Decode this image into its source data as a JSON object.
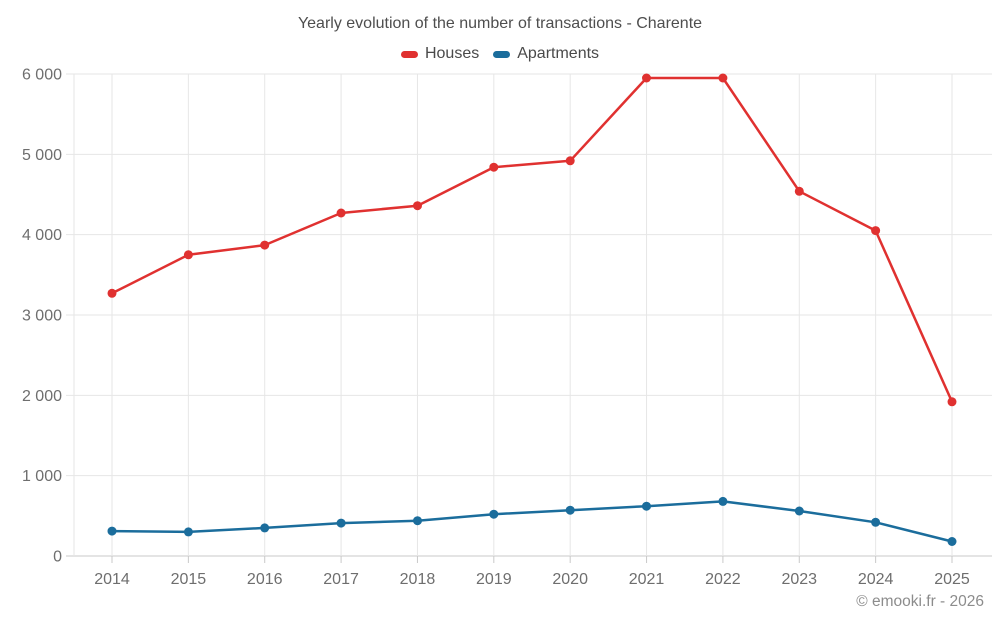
{
  "chart": {
    "title": "Yearly evolution of the number of transactions - Charente",
    "legend": [
      {
        "label": "Houses",
        "color": "#e03130"
      },
      {
        "label": "Apartments",
        "color": "#1b6d9c"
      }
    ],
    "footer": "© emooki.fr - 2026",
    "colors": {
      "grid_line": "#e6e6e6",
      "axis_line": "#c9c9c9",
      "axis_text": "#6e6e6e",
      "title_text": "#4e4e4e",
      "footer_text": "#8c8c8c",
      "background": "#ffffff"
    }
  },
  "chart_data": {
    "type": "line",
    "title": "Yearly evolution of the number of transactions - Charente",
    "xlabel": "",
    "ylabel": "",
    "categories": [
      "2014",
      "2015",
      "2016",
      "2017",
      "2018",
      "2019",
      "2020",
      "2021",
      "2022",
      "2023",
      "2024",
      "2025"
    ],
    "series": [
      {
        "name": "Houses",
        "color": "#e03130",
        "values": [
          3270,
          3750,
          3870,
          4270,
          4360,
          4840,
          4920,
          5950,
          5950,
          4540,
          4050,
          1920
        ]
      },
      {
        "name": "Apartments",
        "color": "#1b6d9c",
        "values": [
          310,
          300,
          350,
          410,
          440,
          520,
          570,
          620,
          680,
          560,
          420,
          180
        ]
      }
    ],
    "ylim": [
      0,
      6000
    ],
    "ytick_interval": 1000,
    "ytick_labels": [
      "0",
      "1 000",
      "2 000",
      "3 000",
      "4 000",
      "5 000",
      "6 000"
    ],
    "grid": true,
    "legend_position": "top",
    "marker": "circle"
  }
}
